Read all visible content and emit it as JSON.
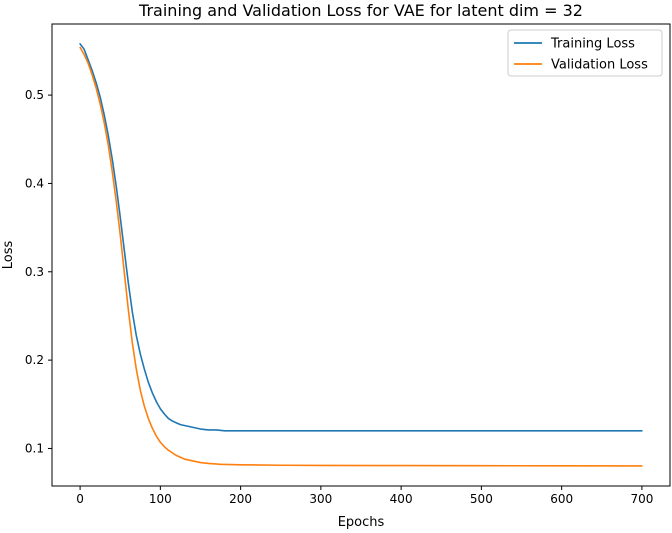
{
  "chart_data": {
    "type": "line",
    "title": "Training and Validation Loss for VAE for latent dim = 32",
    "xlabel": "Epochs",
    "ylabel": "Loss",
    "xlim": [
      -35,
      735
    ],
    "ylim": [
      0.0575,
      0.5805
    ],
    "xticks": [
      0,
      100,
      200,
      300,
      400,
      500,
      600,
      700
    ],
    "xtick_labels": [
      "0",
      "100",
      "200",
      "300",
      "400",
      "500",
      "600",
      "700"
    ],
    "yticks": [
      0.1,
      0.2,
      0.3,
      0.4,
      0.5
    ],
    "ytick_labels": [
      "0.1",
      "0.2",
      "0.3",
      "0.4",
      "0.5"
    ],
    "grid": false,
    "legend_position": "top-right",
    "series": [
      {
        "name": "Training Loss",
        "color": "#1f77b4",
        "x": [
          0,
          5,
          10,
          15,
          20,
          25,
          30,
          35,
          40,
          45,
          50,
          55,
          60,
          65,
          70,
          75,
          80,
          85,
          90,
          95,
          100,
          105,
          110,
          115,
          120,
          125,
          130,
          135,
          140,
          145,
          150,
          160,
          170,
          180,
          190,
          200,
          215,
          230,
          250,
          270,
          300,
          330,
          360,
          400,
          450,
          500,
          550,
          600,
          650,
          700
        ],
        "y": [
          0.558,
          0.552,
          0.54,
          0.528,
          0.514,
          0.498,
          0.478,
          0.455,
          0.428,
          0.397,
          0.362,
          0.325,
          0.288,
          0.255,
          0.228,
          0.207,
          0.19,
          0.175,
          0.163,
          0.153,
          0.145,
          0.139,
          0.134,
          0.131,
          0.129,
          0.127,
          0.126,
          0.125,
          0.124,
          0.123,
          0.122,
          0.121,
          0.121,
          0.12,
          0.12,
          0.12,
          0.12,
          0.12,
          0.12,
          0.12,
          0.12,
          0.12,
          0.12,
          0.12,
          0.12,
          0.12,
          0.12,
          0.12,
          0.12,
          0.12
        ]
      },
      {
        "name": "Validation Loss",
        "color": "#ff7f0e",
        "x": [
          0,
          5,
          10,
          15,
          20,
          25,
          30,
          35,
          40,
          45,
          50,
          55,
          60,
          65,
          70,
          75,
          80,
          85,
          90,
          95,
          100,
          105,
          110,
          115,
          120,
          125,
          130,
          140,
          150,
          160,
          175,
          200,
          250,
          300,
          400,
          500,
          600,
          700
        ],
        "y": [
          0.554,
          0.546,
          0.536,
          0.523,
          0.508,
          0.49,
          0.469,
          0.444,
          0.414,
          0.38,
          0.342,
          0.3,
          0.258,
          0.22,
          0.19,
          0.166,
          0.148,
          0.134,
          0.123,
          0.114,
          0.107,
          0.102,
          0.098,
          0.095,
          0.092,
          0.09,
          0.088,
          0.086,
          0.084,
          0.083,
          0.082,
          0.0815,
          0.081,
          0.0808,
          0.0806,
          0.0805,
          0.0803,
          0.0802
        ]
      }
    ]
  }
}
